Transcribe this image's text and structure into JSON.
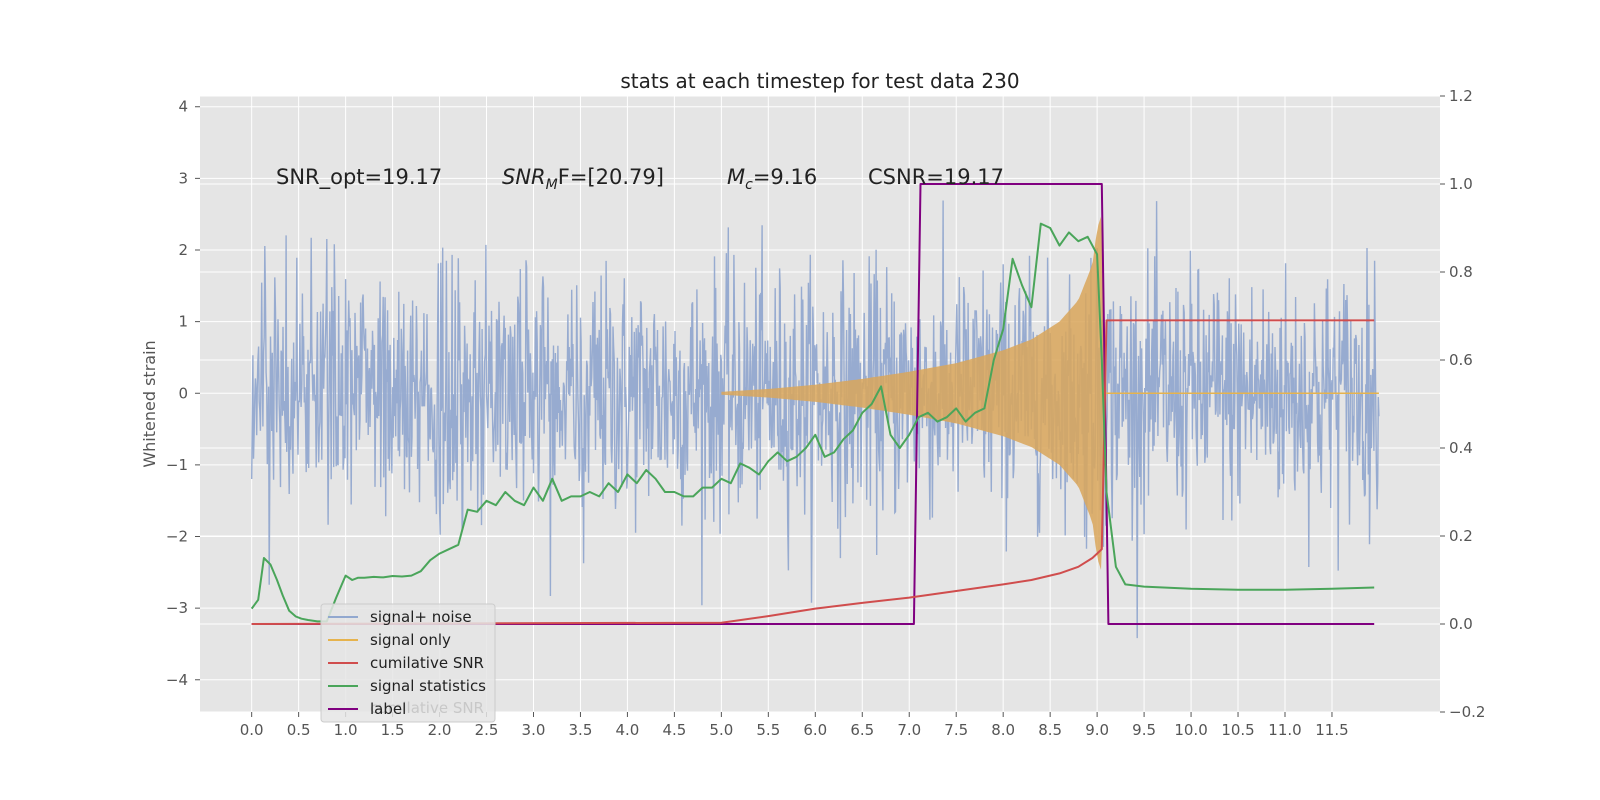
{
  "chart_data": {
    "type": "line",
    "title": "stats at each timestep for test data 230",
    "xlabel": "",
    "ylabel": "Whitened strain",
    "xlim": [
      -0.55,
      12.65
    ],
    "ylim": [
      -4.45,
      4.15
    ],
    "y2lim": [
      -0.2,
      1.2
    ],
    "x_ticks": [
      "0.0",
      "0.5",
      "1.0",
      "1.5",
      "2.0",
      "2.5",
      "3.0",
      "3.5",
      "4.0",
      "4.5",
      "5.0",
      "5.5",
      "6.0",
      "6.5",
      "7.0",
      "7.5",
      "8.0",
      "8.5",
      "9.0",
      "9.5",
      "10.0",
      "10.5",
      "11.0",
      "11.5"
    ],
    "y_ticks": [
      "4",
      "3",
      "2",
      "1",
      "0",
      "−1",
      "−2",
      "−3",
      "−4"
    ],
    "y2_ticks": [
      "1.2",
      "1.0",
      "0.8",
      "0.6",
      "0.4",
      "0.2",
      "0.0",
      "−0.2"
    ],
    "grid": true,
    "legend_position": "lower-left",
    "annotations": {
      "snr_opt": "SNR_opt=19.17",
      "snr_mf_main": "SNR",
      "snr_mf_sub": "M",
      "snr_mf_rest": "F=[20.79]",
      "mc_main": "M",
      "mc_sub": "c",
      "mc_rest": "=9.16",
      "csnr": "CSNR=19.17"
    },
    "legend": {
      "entries": [
        "signal+ noise",
        "signal only",
        "cumilative SNR",
        "signal statistics",
        "label"
      ],
      "ghost_text": "cumilative SNR"
    },
    "colors": {
      "signal_noise": "#92a8cf",
      "signal_only": "#e6b34d",
      "signal_fill": "#d9a65a",
      "cumulative_snr": "#d04d4d",
      "signal_statistics": "#4aa55a",
      "label": "#800080",
      "background": "#e5e5e5"
    },
    "series": [
      {
        "name": "signal+ noise",
        "axis": "left",
        "x_range": [
          0.0,
          12.0
        ],
        "noise_std": 0.85
      },
      {
        "name": "signal only",
        "axis": "left",
        "x": [
          5.0,
          5.5,
          6.0,
          6.5,
          7.0,
          7.5,
          8.0,
          8.3,
          8.6,
          8.8,
          8.95,
          9.0,
          9.05,
          9.1
        ],
        "envelope": [
          0.02,
          0.06,
          0.12,
          0.2,
          0.3,
          0.42,
          0.6,
          0.75,
          1.0,
          1.3,
          1.8,
          2.3,
          2.5,
          0.0
        ]
      },
      {
        "name": "cumilative SNR",
        "axis": "right",
        "x": [
          0.0,
          5.0,
          5.5,
          6.0,
          6.5,
          7.0,
          7.5,
          8.0,
          8.3,
          8.6,
          8.8,
          8.95,
          9.05,
          9.1,
          11.5,
          11.95
        ],
        "y": [
          0.0,
          0.003,
          0.018,
          0.035,
          0.048,
          0.06,
          0.075,
          0.09,
          0.1,
          0.115,
          0.13,
          0.15,
          0.17,
          0.69,
          0.69,
          0.69
        ]
      },
      {
        "name": "signal statistics",
        "axis": "right",
        "x": [
          0.0,
          0.07,
          0.13,
          0.2,
          0.27,
          0.33,
          0.4,
          0.47,
          0.53,
          0.6,
          0.7,
          0.8,
          0.9,
          1.0,
          1.07,
          1.13,
          1.2,
          1.3,
          1.4,
          1.5,
          1.6,
          1.7,
          1.8,
          1.9,
          2.0,
          2.1,
          2.2,
          2.3,
          2.4,
          2.5,
          2.6,
          2.7,
          2.8,
          2.9,
          3.0,
          3.1,
          3.2,
          3.3,
          3.4,
          3.5,
          3.6,
          3.7,
          3.8,
          3.9,
          4.0,
          4.1,
          4.2,
          4.3,
          4.4,
          4.5,
          4.6,
          4.7,
          4.8,
          4.9,
          5.0,
          5.1,
          5.2,
          5.3,
          5.4,
          5.5,
          5.6,
          5.7,
          5.8,
          5.9,
          6.0,
          6.1,
          6.2,
          6.3,
          6.4,
          6.5,
          6.6,
          6.7,
          6.8,
          6.9,
          7.0,
          7.1,
          7.2,
          7.3,
          7.4,
          7.5,
          7.6,
          7.7,
          7.8,
          7.9,
          8.0,
          8.1,
          8.2,
          8.3,
          8.4,
          8.5,
          8.6,
          8.7,
          8.8,
          8.9,
          9.0,
          9.05,
          9.1,
          9.2,
          9.3,
          9.5,
          10.0,
          10.5,
          11.0,
          11.5,
          11.95
        ],
        "y": [
          0.035,
          0.055,
          0.15,
          0.135,
          0.1,
          0.065,
          0.03,
          0.017,
          0.012,
          0.009,
          0.006,
          0.006,
          0.06,
          0.11,
          0.1,
          0.105,
          0.105,
          0.107,
          0.106,
          0.109,
          0.108,
          0.11,
          0.12,
          0.145,
          0.16,
          0.17,
          0.18,
          0.26,
          0.255,
          0.28,
          0.27,
          0.3,
          0.28,
          0.27,
          0.31,
          0.28,
          0.33,
          0.28,
          0.29,
          0.29,
          0.3,
          0.29,
          0.32,
          0.3,
          0.34,
          0.32,
          0.35,
          0.33,
          0.3,
          0.3,
          0.29,
          0.29,
          0.31,
          0.31,
          0.33,
          0.32,
          0.365,
          0.355,
          0.34,
          0.37,
          0.39,
          0.37,
          0.38,
          0.4,
          0.43,
          0.38,
          0.39,
          0.42,
          0.44,
          0.48,
          0.5,
          0.54,
          0.43,
          0.4,
          0.43,
          0.47,
          0.48,
          0.46,
          0.47,
          0.49,
          0.46,
          0.48,
          0.49,
          0.6,
          0.67,
          0.83,
          0.77,
          0.72,
          0.91,
          0.9,
          0.86,
          0.89,
          0.87,
          0.88,
          0.84,
          0.6,
          0.3,
          0.13,
          0.09,
          0.085,
          0.08,
          0.078,
          0.078,
          0.08,
          0.083
        ]
      },
      {
        "name": "label",
        "axis": "right",
        "x": [
          0.0,
          7.05,
          7.12,
          9.05,
          9.12,
          11.95
        ],
        "y": [
          0.0,
          0.0,
          1.0,
          1.0,
          0.0,
          0.0
        ]
      }
    ]
  }
}
